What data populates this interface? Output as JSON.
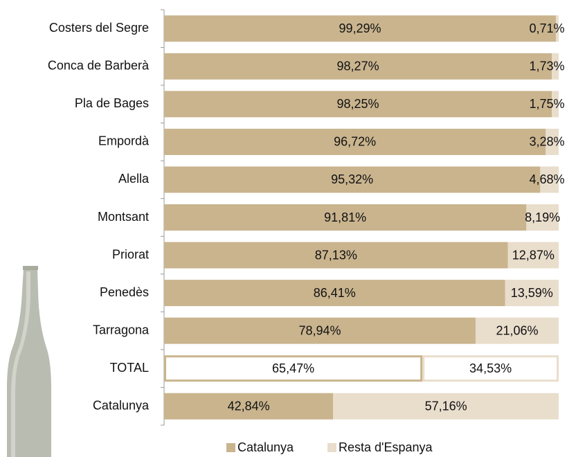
{
  "chart_data": {
    "type": "stacked_bar_horizontal",
    "categories": [
      "Costers del Segre",
      "Conca de Barberà",
      "Pla de Bages",
      "Empordà",
      "Alella",
      "Montsant",
      "Priorat",
      "Penedès",
      "Tarragona",
      "TOTAL",
      "Catalunya"
    ],
    "series": [
      {
        "name": "Catalunya",
        "color": "#c9b48e",
        "values": [
          99.29,
          98.27,
          98.25,
          96.72,
          95.32,
          91.81,
          87.13,
          86.41,
          78.94,
          65.47,
          42.84
        ],
        "value_labels": [
          "99,29%",
          "98,27%",
          "98,25%",
          "96,72%",
          "95,32%",
          "91,81%",
          "87,13%",
          "86,41%",
          "78,94%",
          "65,47%",
          "42,84%"
        ]
      },
      {
        "name": "Resta d'Espanya",
        "color": "#e9ddcc",
        "values": [
          0.71,
          1.73,
          1.75,
          3.28,
          4.68,
          8.19,
          12.87,
          13.59,
          21.06,
          34.53,
          57.16
        ],
        "value_labels": [
          "0,71%",
          "1,73%",
          "1,75%",
          "3,28%",
          "4,68%",
          "8,19%",
          "12,87%",
          "13,59%",
          "21,06%",
          "34,53%",
          "57,16%"
        ]
      }
    ],
    "xlim": [
      0,
      100
    ],
    "outline_category": "TOTAL",
    "legend": "bottom"
  }
}
